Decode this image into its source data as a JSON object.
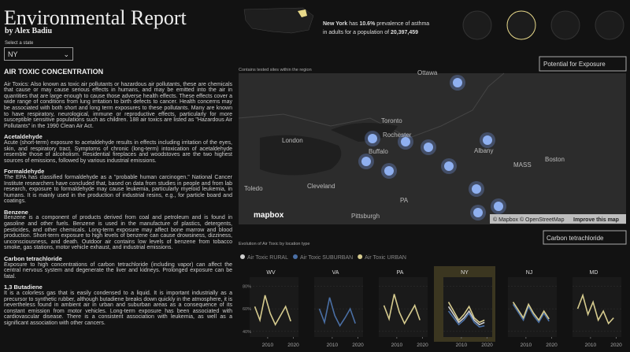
{
  "header": {
    "title": "Environmental Report",
    "author": "by Alex Badiu",
    "select_label": "Select a state",
    "selected_state": "NY"
  },
  "article": {
    "heading": "AIR TOXIC CONCENTRATION",
    "intro": "Air Toxics: Also known as toxic air pollutants or hazardous air pollutants, these are chemicals that cause or may cause serious effects in humans, and may be emitted into the air in quantities that are large enough to cause those adverse health effects. These effects cover a wide range of conditions from lung irritation to birth defects to cancer. Health concerns may be associated with both short and long term exposures to these pollutants. Many are known to have respiratory, neurological, immune or reproductive effects, particularly for more susceptible sensitive populations such as children. 188 air toxics are listed as \"Hazardous Air Pollutants\" in the 1990 Clean Air Act.",
    "sections": [
      {
        "heading": "Acetaldehyde",
        "text": "Acute (short-term) exposure to acetaldehyde results in effects including irritation of the eyes, skin, and respiratory tract. Symptoms of chronic (long-term) intoxication of acetaldehyde resemble those of alcoholism. Residential fireplaces and woodstoves are the two highest sources of emissions, followed by various industrial emissions."
      },
      {
        "heading": "Formaldehyde",
        "text": "The EPA has classified formaldehyde as a \"probable human carcinogen.\" National Cancer Institute researchers have concluded that, based on data from studies in people and from lab research, exposure to formaldehyde may cause leukemia, particularly myeloid leukemia, in humans. It is mainly used in the production of industrial resins, e.g., for particle board and coatings."
      },
      {
        "heading": "Benzene",
        "text": "Benzene is a component of products derived from coal and petroleum and is found in gasoline and other fuels. Benzene is used in the manufacture of plastics, detergents, pesticides, and other chemicals. Long-term exposure may affect bone marrow and blood production. Short-term exposure to high levels of benzene can cause drowsiness, dizziness, unconsciousness, and death. Outdoor air contains low levels of benzene from tobacco smoke, gas stations, motor vehicle exhaust, and industrial emissions."
      },
      {
        "heading": "Carbon tetrachloride",
        "text": "Exposure to high concentrations of carbon tetrachloride (including vapor) can affect the central nervous system and degenerate the liver and kidneys. Prolonged exposure can be fatal."
      },
      {
        "heading": "1,3 Butadiene",
        "text": "It is a colorless gas that is easily condensed to a liquid. It is important industrially as a precursor to synthetic rubber, although butadiene breaks down quickly in the atmosphere, it is nevertheless found in ambient air in urban and suburban areas as a consequence of its constant emission from motor vehicles. Long-term exposure has been associated with cardiovascular disease. There is a consistent association with leukemia, as well as a significant association with other cancers."
      }
    ]
  },
  "summary": {
    "state": "New York",
    "t1": " has ",
    "rate": "10.6%",
    "t2": " prevalence of asthma",
    "t3": "in adults for a population of ",
    "population": "20,397,459"
  },
  "map": {
    "dropdown": "Potential for Exposure",
    "caption": "Contains tested sites within the region",
    "labels": [
      "Ottawa",
      "Toronto",
      "Rochester",
      "London",
      "Buffalo",
      "Albany",
      "MASS",
      "Boston",
      "Toledo",
      "Cleveland",
      "PA",
      "Pittsburgh"
    ],
    "logo": "mapbox",
    "attribution": "© Mapbox © OpenStreetMap",
    "improve": "Improve this map"
  },
  "chart_data": {
    "type": "line",
    "title": "Evolution of Air Toxic by location type",
    "dropdown": "Carbon tetrachloride",
    "legend": [
      {
        "name": "Air Toxic RURAL",
        "color": "#cfcfcf"
      },
      {
        "name": "Air Toxic SUBURBAN",
        "color": "#4a6fa5"
      },
      {
        "name": "Air Toxic URBAN",
        "color": "#d6cb8e"
      }
    ],
    "x": [
      2005,
      2007,
      2009,
      2011,
      2013,
      2015,
      2017,
      2019
    ],
    "xlim": [
      2003,
      2022
    ],
    "xticks": [
      2010,
      2020
    ],
    "ylim": [
      35,
      88
    ],
    "yticks": [
      {
        "value": 80,
        "label": "80%"
      },
      {
        "value": 60,
        "label": "60%"
      },
      {
        "value": 40,
        "label": "40%"
      }
    ],
    "highlight": "NY",
    "panels": [
      {
        "name": "WV",
        "series": [
          {
            "name": "Air Toxic URBAN",
            "color": "#d6cb8e",
            "values": [
              62,
              50,
              72,
              56,
              46,
              54,
              62,
              49
            ]
          }
        ]
      },
      {
        "name": "VA",
        "series": [
          {
            "name": "Air Toxic SUBURBAN",
            "color": "#4a6fa5",
            "values": [
              60,
              48,
              70,
              54,
              45,
              52,
              60,
              47
            ]
          }
        ]
      },
      {
        "name": "PA",
        "series": [
          {
            "name": "Air Toxic URBAN",
            "color": "#d6cb8e",
            "values": [
              63,
              51,
              73,
              57,
              47,
              55,
              63,
              50
            ]
          }
        ]
      },
      {
        "name": "NY",
        "series": [
          {
            "name": "Air Toxic RURAL",
            "color": "#cfcfcf",
            "values": [
              62,
              55,
              48,
              52,
              58,
              50,
              46,
              48
            ]
          },
          {
            "name": "Air Toxic SUBURBAN",
            "color": "#4a6fa5",
            "values": [
              58,
              52,
              46,
              50,
              56,
              48,
              44,
              45
            ]
          },
          {
            "name": "Air Toxic URBAN",
            "color": "#d6cb8e",
            "values": [
              66,
              58,
              50,
              55,
              62,
              52,
              48,
              50
            ]
          }
        ]
      },
      {
        "name": "NJ",
        "series": [
          {
            "name": "Air Toxic SUBURBAN",
            "color": "#4a6fa5",
            "values": [
              64,
              57,
              50,
              62,
              54,
              48,
              56,
              49
            ]
          },
          {
            "name": "Air Toxic URBAN",
            "color": "#d6cb8e",
            "values": [
              66,
              59,
              52,
              64,
              56,
              50,
              58,
              51
            ]
          }
        ]
      },
      {
        "name": "MD",
        "series": [
          {
            "name": "Air Toxic URBAN",
            "color": "#d6cb8e",
            "values": [
              60,
              72,
              55,
              66,
              50,
              58,
              47,
              52
            ]
          }
        ]
      }
    ]
  }
}
